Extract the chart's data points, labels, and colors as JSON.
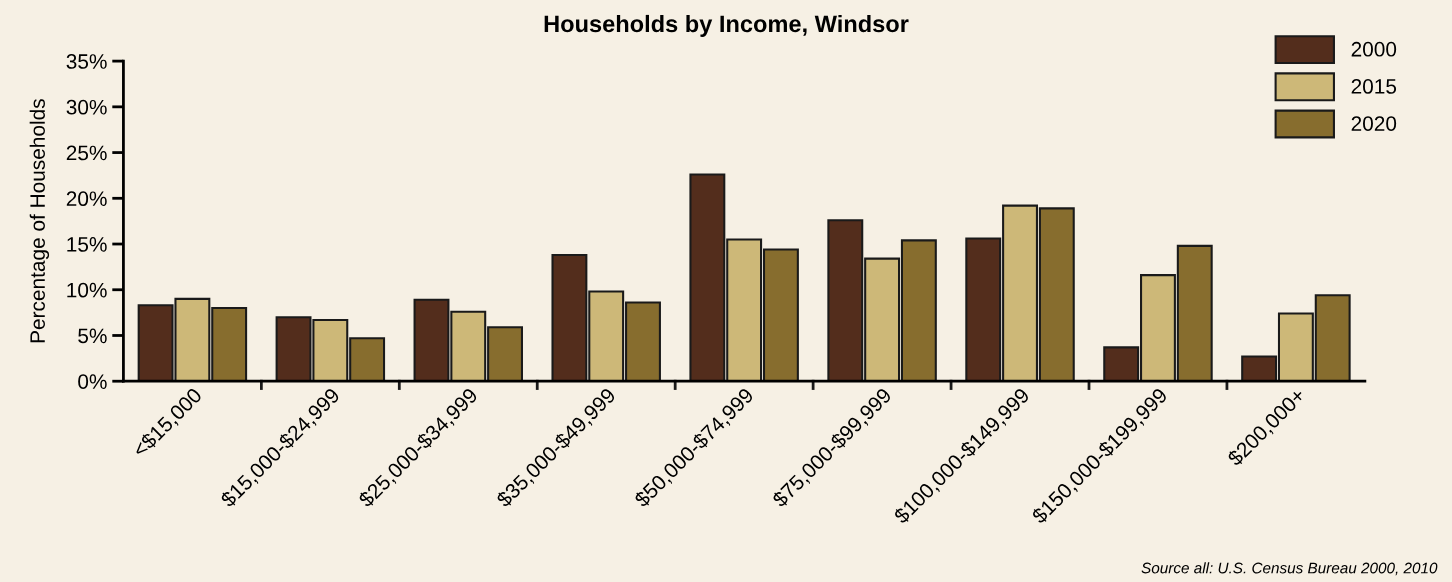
{
  "chart_data": {
    "type": "bar",
    "title": "Households by Income, Windsor",
    "ylabel": "Percentage of Households",
    "categories": [
      "<$15,000",
      "$15,000-$24,999",
      "$25,000-$34,999",
      "$35,000-$49,999",
      "$50,000-$74,999",
      "$75,000-$99,999",
      "$100,000-$149,999",
      "$150,000-$199,999",
      "$200,000+"
    ],
    "series": [
      {
        "name": "2000",
        "color": "#532d1c",
        "values": [
          8.3,
          7.0,
          8.9,
          13.8,
          22.6,
          17.6,
          15.6,
          3.7,
          2.7
        ]
      },
      {
        "name": "2015",
        "color": "#cdb878",
        "values": [
          9.0,
          6.7,
          7.6,
          9.8,
          15.5,
          13.4,
          19.2,
          11.6,
          7.4
        ]
      },
      {
        "name": "2020",
        "color": "#876d2e",
        "values": [
          8.0,
          4.7,
          5.9,
          8.6,
          14.4,
          15.4,
          18.9,
          14.8,
          9.4
        ]
      }
    ],
    "ylim": [
      0,
      35
    ],
    "yticks": [
      {
        "value": 0,
        "label": "0%"
      },
      {
        "value": 5,
        "label": "5%"
      },
      {
        "value": 10,
        "label": "10%"
      },
      {
        "value": 15,
        "label": "15%"
      },
      {
        "value": 20,
        "label": "20%"
      },
      {
        "value": 25,
        "label": "25%"
      },
      {
        "value": 30,
        "label": "30%"
      },
      {
        "value": 35,
        "label": "35%"
      }
    ],
    "grid": false,
    "legend": "top right",
    "annotations": [
      "Source all: U.S. Census Bureau 2000, 2010"
    ]
  }
}
